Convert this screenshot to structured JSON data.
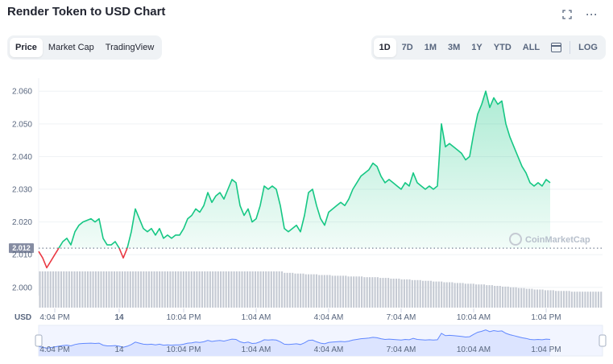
{
  "header": {
    "title": "Render Token to USD Chart",
    "fullscreen_icon": "expand-icon",
    "more_icon": "more-horizontal-icon",
    "more_glyph": "···"
  },
  "view_tabs": [
    {
      "label": "Price",
      "active": true
    },
    {
      "label": "Market Cap",
      "active": false
    },
    {
      "label": "TradingView",
      "active": false
    }
  ],
  "range_tabs": [
    {
      "label": "1D",
      "active": true
    },
    {
      "label": "7D",
      "active": false
    },
    {
      "label": "1M",
      "active": false
    },
    {
      "label": "3M",
      "active": false
    },
    {
      "label": "1Y",
      "active": false
    },
    {
      "label": "YTD",
      "active": false
    },
    {
      "label": "ALL",
      "active": false
    }
  ],
  "calendar_icon": "calendar-icon",
  "log_label": "LOG",
  "colors": {
    "up": "#16c784",
    "down": "#ea3943",
    "up_fill": "#16c784",
    "volume": "#c5cad3",
    "navigator_line": "#6188ff",
    "price_tag_bg": "#858ca2"
  },
  "watermark": "CoinMarketCap",
  "chart_data": {
    "type": "line",
    "currency_label": "USD",
    "baseline": 2.012,
    "baseline_label": "2.012",
    "y_ticks": [
      "2.060",
      "2.050",
      "2.040",
      "2.030",
      "2.020",
      "2.010",
      "2.000"
    ],
    "y_tick_values": [
      2.06,
      2.05,
      2.04,
      2.03,
      2.02,
      2.01,
      2.0
    ],
    "ylim": [
      1.9975,
      2.064
    ],
    "x_ticks": [
      "4:04 PM",
      "14",
      "10:04 PM",
      "1:04 AM",
      "4:04 AM",
      "7:04 AM",
      "10:04 AM",
      "1:04 PM"
    ],
    "x_tick_hours": [
      2,
      10,
      18,
      27,
      36,
      45,
      54,
      63
    ],
    "xlim": [
      0,
      70
    ],
    "series": [
      {
        "points": [
          [
            0,
            2.011
          ],
          [
            0.5,
            2.009
          ],
          [
            1.0,
            2.006
          ],
          [
            1.5,
            2.008
          ],
          [
            2.0,
            2.01
          ],
          [
            2.5,
            2.012
          ],
          [
            3.0,
            2.014
          ],
          [
            3.5,
            2.015
          ],
          [
            4.0,
            2.013
          ],
          [
            4.5,
            2.017
          ],
          [
            5.0,
            2.019
          ],
          [
            5.5,
            2.02
          ],
          [
            6.5,
            2.021
          ],
          [
            7.0,
            2.02
          ],
          [
            7.5,
            2.021
          ],
          [
            8.0,
            2.015
          ],
          [
            8.5,
            2.013
          ],
          [
            9.0,
            2.013
          ],
          [
            9.5,
            2.014
          ],
          [
            10.0,
            2.012
          ],
          [
            10.5,
            2.009
          ],
          [
            11.0,
            2.012
          ],
          [
            11.5,
            2.017
          ],
          [
            12.0,
            2.024
          ],
          [
            12.5,
            2.021
          ],
          [
            13.0,
            2.018
          ],
          [
            13.5,
            2.017
          ],
          [
            14.0,
            2.018
          ],
          [
            14.5,
            2.016
          ],
          [
            15.0,
            2.018
          ],
          [
            15.5,
            2.015
          ],
          [
            16.0,
            2.016
          ],
          [
            16.5,
            2.015
          ],
          [
            17.0,
            2.016
          ],
          [
            17.5,
            2.016
          ],
          [
            18.0,
            2.018
          ],
          [
            18.5,
            2.021
          ],
          [
            19.0,
            2.022
          ],
          [
            19.5,
            2.024
          ],
          [
            20.0,
            2.023
          ],
          [
            20.5,
            2.025
          ],
          [
            21.0,
            2.029
          ],
          [
            21.5,
            2.026
          ],
          [
            22.0,
            2.028
          ],
          [
            22.5,
            2.029
          ],
          [
            23.0,
            2.027
          ],
          [
            23.5,
            2.03
          ],
          [
            24.0,
            2.033
          ],
          [
            24.5,
            2.032
          ],
          [
            25.0,
            2.025
          ],
          [
            25.5,
            2.022
          ],
          [
            26.0,
            2.024
          ],
          [
            26.5,
            2.02
          ],
          [
            27.0,
            2.021
          ],
          [
            27.5,
            2.025
          ],
          [
            28.0,
            2.031
          ],
          [
            28.5,
            2.03
          ],
          [
            29.0,
            2.031
          ],
          [
            29.5,
            2.03
          ],
          [
            30.0,
            2.025
          ],
          [
            30.5,
            2.018
          ],
          [
            31.0,
            2.017
          ],
          [
            31.5,
            2.018
          ],
          [
            32.0,
            2.019
          ],
          [
            32.5,
            2.017
          ],
          [
            33.0,
            2.022
          ],
          [
            33.5,
            2.029
          ],
          [
            34.0,
            2.03
          ],
          [
            34.5,
            2.025
          ],
          [
            35.0,
            2.021
          ],
          [
            35.5,
            2.019
          ],
          [
            36.0,
            2.023
          ],
          [
            36.5,
            2.024
          ],
          [
            37.0,
            2.025
          ],
          [
            37.5,
            2.026
          ],
          [
            38.0,
            2.025
          ],
          [
            38.5,
            2.027
          ],
          [
            39.0,
            2.03
          ],
          [
            39.5,
            2.032
          ],
          [
            40.0,
            2.034
          ],
          [
            40.5,
            2.035
          ],
          [
            41.0,
            2.036
          ],
          [
            41.5,
            2.038
          ],
          [
            42.0,
            2.037
          ],
          [
            42.5,
            2.034
          ],
          [
            43.0,
            2.032
          ],
          [
            43.5,
            2.033
          ],
          [
            44.0,
            2.032
          ],
          [
            44.5,
            2.031
          ],
          [
            45.0,
            2.03
          ],
          [
            45.5,
            2.032
          ],
          [
            46.0,
            2.031
          ],
          [
            46.5,
            2.035
          ],
          [
            47.0,
            2.032
          ],
          [
            47.5,
            2.031
          ],
          [
            48.0,
            2.03
          ],
          [
            48.5,
            2.031
          ],
          [
            49.0,
            2.03
          ],
          [
            49.5,
            2.031
          ],
          [
            50.0,
            2.05
          ],
          [
            50.5,
            2.043
          ],
          [
            51.0,
            2.044
          ],
          [
            51.5,
            2.043
          ],
          [
            52.0,
            2.042
          ],
          [
            52.5,
            2.041
          ],
          [
            53.0,
            2.039
          ],
          [
            53.5,
            2.04
          ],
          [
            54.0,
            2.047
          ],
          [
            54.5,
            2.053
          ],
          [
            55.0,
            2.056
          ],
          [
            55.5,
            2.06
          ],
          [
            56.0,
            2.055
          ],
          [
            56.5,
            2.058
          ],
          [
            57.0,
            2.056
          ],
          [
            57.5,
            2.057
          ],
          [
            58.0,
            2.05
          ],
          [
            58.5,
            2.046
          ],
          [
            59.0,
            2.043
          ],
          [
            59.5,
            2.04
          ],
          [
            60.0,
            2.037
          ],
          [
            60.5,
            2.035
          ],
          [
            61.0,
            2.032
          ],
          [
            61.5,
            2.031
          ],
          [
            62.0,
            2.032
          ],
          [
            62.5,
            2.031
          ],
          [
            63.0,
            2.033
          ],
          [
            63.5,
            2.032
          ]
        ]
      }
    ],
    "volume": [
      5,
      5,
      5,
      5,
      5,
      5,
      5,
      5,
      5,
      5,
      5,
      5,
      5,
      5,
      5,
      5,
      5,
      5,
      5,
      5,
      5,
      5,
      5,
      5,
      5,
      5,
      5,
      5,
      5,
      5,
      5,
      5,
      5,
      5,
      5,
      5,
      5,
      5,
      5,
      5,
      5,
      5,
      5,
      5,
      5,
      5,
      5,
      5,
      5,
      5,
      5,
      5,
      5,
      5,
      5,
      5,
      5,
      5,
      5,
      5,
      5,
      5,
      5,
      5,
      5,
      5,
      5,
      5,
      5,
      5,
      5,
      5,
      5,
      5,
      5,
      5,
      5,
      5,
      5,
      5,
      5,
      5,
      5,
      5,
      5,
      5,
      5,
      5,
      5,
      5,
      5,
      5,
      4.8,
      4.8,
      4.8,
      4.8,
      4.7,
      4.7,
      4.7,
      4.7,
      4.6,
      4.6,
      4.6,
      4.6,
      4.6,
      4.5,
      4.5,
      4.5,
      4.5,
      4.5,
      4.4,
      4.4,
      4.4,
      4.4,
      4.4,
      4.4,
      4.3,
      4.3,
      4.3,
      4.3,
      4.3,
      4.3,
      4.2,
      4.2,
      4.2,
      4.2,
      4.2,
      4.2,
      4.1,
      4.1,
      4.1,
      4.1,
      4.0,
      4.0,
      4.0,
      4.0,
      3.9,
      3.9,
      3.9,
      3.9,
      3.8,
      3.8,
      3.8,
      3.8,
      3.7,
      3.7,
      3.7,
      3.7,
      3.6,
      3.6,
      3.6,
      3.6,
      3.5,
      3.5,
      3.5,
      3.5,
      3.4,
      3.4,
      3.4,
      3.4,
      3.3,
      3.3,
      3.3,
      3.3,
      3.2,
      3.2,
      3.2,
      3.2,
      3.1,
      3.1,
      3.1,
      3.0,
      3.0,
      3.0,
      2.9,
      2.9,
      2.9,
      2.8,
      2.8,
      2.8,
      2.7,
      2.7,
      2.7,
      2.6,
      2.6,
      2.6,
      2.5,
      2.5,
      2.5,
      2.5,
      2.4,
      2.4,
      2.4,
      2.4,
      2.3,
      2.3,
      2.3,
      2.3,
      2.3,
      2.3,
      2.2,
      2.2,
      2.2,
      2.2,
      2.2,
      2.2,
      2.2,
      2.2,
      2.2,
      2.2,
      2.2,
      2.2
    ],
    "grid": true,
    "legend": "none"
  }
}
